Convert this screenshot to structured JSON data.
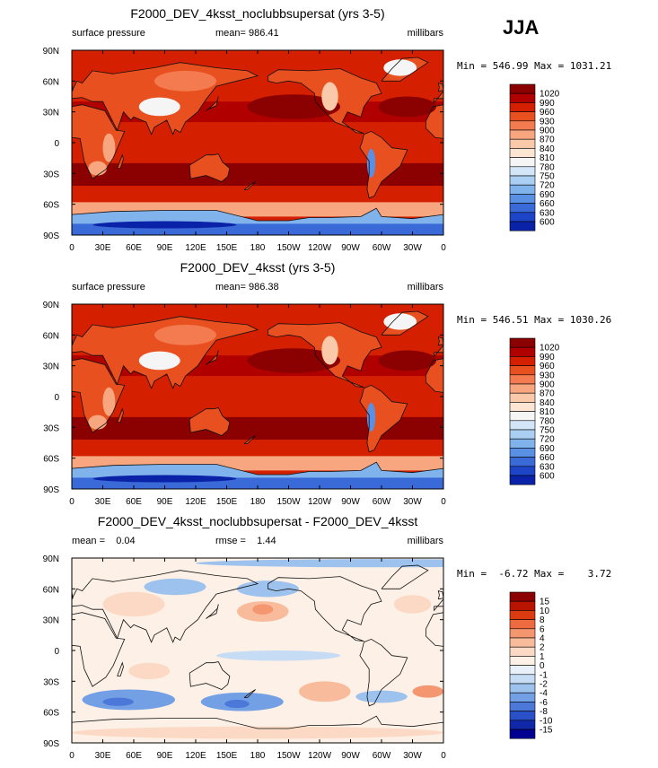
{
  "season": "JJA",
  "colormaps": {
    "abs": [
      "#8b0000",
      "#b00000",
      "#d42000",
      "#e85020",
      "#f37b4f",
      "#f7a680",
      "#fac9aa",
      "#fde5d4",
      "#f5f5f5",
      "#d2e6f8",
      "#aacff2",
      "#80b3ec",
      "#5a90e4",
      "#3a6ad8",
      "#1e44c8",
      "#0a22a8",
      "#000090"
    ],
    "diff": [
      "#8b0000",
      "#b81400",
      "#dc3a10",
      "#ef6a3e",
      "#f49670",
      "#f8bc9c",
      "#fbd9c4",
      "#fdf0e6",
      "#e8f0fa",
      "#c6dcf5",
      "#9ec2ee",
      "#739fe5",
      "#4c78da",
      "#2a50c8",
      "#1028a8",
      "#000090"
    ]
  },
  "panels": [
    {
      "title": "F2000_DEV_4ksst_noclubbsupersat (yrs 3-5)",
      "left_label": "surface pressure",
      "center_label": "mean= 986.41",
      "right_label": "millibars",
      "stats": "Min = 546.99 Max = 1031.21",
      "scheme": "abs",
      "levels": [
        "1020",
        "990",
        "960",
        "930",
        "900",
        "870",
        "840",
        "810",
        "780",
        "750",
        "720",
        "690",
        "660",
        "630",
        "600"
      ]
    },
    {
      "title": "F2000_DEV_4ksst (yrs 3-5)",
      "left_label": "surface pressure",
      "center_label": "mean= 986.38",
      "right_label": "millibars",
      "stats": "Min = 546.51 Max = 1030.26",
      "scheme": "abs",
      "levels": [
        "1020",
        "990",
        "960",
        "930",
        "900",
        "870",
        "840",
        "810",
        "780",
        "750",
        "720",
        "690",
        "660",
        "630",
        "600"
      ]
    },
    {
      "title": "F2000_DEV_4ksst_noclubbsupersat - F2000_DEV_4ksst",
      "left_label": "mean =    0.04",
      "center_label": "rmse =    1.44",
      "right_label": "millibars",
      "stats": "Min =  -6.72 Max =    3.72",
      "scheme": "diff",
      "levels": [
        "15",
        "10",
        "8",
        "6",
        "4",
        "2",
        "1",
        "0",
        "-1",
        "-2",
        "-4",
        "-6",
        "-8",
        "-10",
        "-15"
      ]
    }
  ],
  "chart_data": {
    "type": "heatmap",
    "variable": "surface pressure",
    "units": "millibars",
    "season": "JJA",
    "x_ticks": [
      "0",
      "30E",
      "60E",
      "90E",
      "120E",
      "150E",
      "180",
      "150W",
      "120W",
      "90W",
      "60W",
      "30W",
      "0"
    ],
    "y_ticks": [
      "90N",
      "60N",
      "30N",
      "0",
      "30S",
      "60S",
      "90S"
    ],
    "xlim": [
      0,
      360
    ],
    "ylim": [
      -90,
      90
    ],
    "maps": [
      {
        "name": "F2000_DEV_4ksst_noclubbsupersat (yrs 3-5)",
        "mean": 986.41,
        "min": 546.99,
        "max": 1031.21
      },
      {
        "name": "F2000_DEV_4ksst (yrs 3-5)",
        "mean": 986.38,
        "min": 546.51,
        "max": 1030.26
      },
      {
        "name": "F2000_DEV_4ksst_noclubbsupersat - F2000_DEV_4ksst",
        "mean": 0.04,
        "rmse": 1.44,
        "min": -6.72,
        "max": 3.72
      }
    ]
  }
}
